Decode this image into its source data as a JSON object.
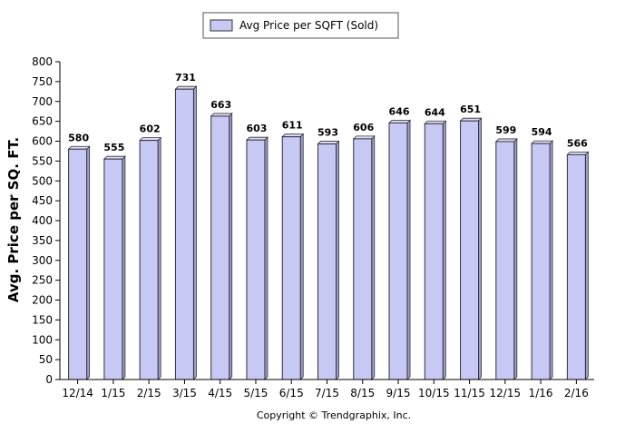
{
  "chart_data": {
    "type": "bar",
    "categories": [
      "12/14",
      "1/15",
      "2/15",
      "3/15",
      "4/15",
      "5/15",
      "6/15",
      "7/15",
      "8/15",
      "9/15",
      "10/15",
      "11/15",
      "12/15",
      "1/16",
      "2/16"
    ],
    "series": [
      {
        "name": "Avg Price per SQFT (Sold)",
        "values": [
          580,
          555,
          602,
          731,
          663,
          603,
          611,
          593,
          606,
          646,
          644,
          651,
          599,
          594,
          566
        ]
      }
    ],
    "value_labels": [
      "580",
      "555",
      "602",
      "731",
      "663",
      "603",
      "611",
      "593",
      "606",
      "646",
      "644",
      "651",
      "599",
      "594",
      "566"
    ],
    "title": "",
    "xlabel": "",
    "ylabel": "Avg. Price per SQ. FT.",
    "ylim": [
      0,
      800
    ],
    "yticks": [
      0,
      50,
      100,
      150,
      200,
      250,
      300,
      350,
      400,
      450,
      500,
      550,
      600,
      650,
      700,
      750,
      800
    ],
    "grid": false,
    "legend_position": "top-center",
    "colors": {
      "bar_fill": "#c8c8f5",
      "bar_stroke": "#303030",
      "axis": "#000000"
    }
  },
  "footer": {
    "copyright": "Copyright © Trendgraphix, Inc."
  }
}
